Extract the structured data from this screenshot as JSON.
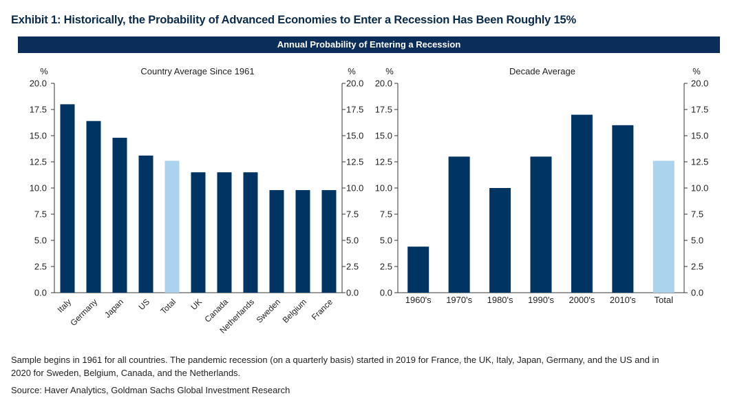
{
  "exhibit_title": "Exhibit 1: Historically, the Probability of Advanced Economies to Enter a Recession Has Been Roughly 15%",
  "banner_title": "Annual Probability of Entering a Recession",
  "colors": {
    "navy": "#003462",
    "light": "#acd3ee",
    "banner": "#0b2d59",
    "axis": "#333333"
  },
  "chart_data": [
    {
      "type": "bar",
      "title": "Country Average Since 1961",
      "ylabel_left": "%",
      "ylabel_right": "%",
      "ylim": [
        0,
        20
      ],
      "yticks": [
        "0.0",
        "2.5",
        "5.0",
        "7.5",
        "10.0",
        "12.5",
        "15.0",
        "17.5",
        "20.0"
      ],
      "categories": [
        "Italy",
        "Germany",
        "Japan",
        "US",
        "Total",
        "UK",
        "Canada",
        "Netherlands",
        "Sweden",
        "Belgium",
        "France"
      ],
      "values": [
        18.0,
        16.4,
        14.8,
        13.1,
        12.6,
        11.5,
        11.5,
        11.5,
        9.8,
        9.8,
        9.8
      ],
      "highlight": [
        "Total"
      ],
      "rotated_labels": true
    },
    {
      "type": "bar",
      "title": "Decade Average",
      "ylabel_left": "%",
      "ylabel_right": "%",
      "ylim": [
        0,
        20
      ],
      "yticks": [
        "0.0",
        "2.5",
        "5.0",
        "7.5",
        "10.0",
        "12.5",
        "15.0",
        "17.5",
        "20.0"
      ],
      "categories": [
        "1960's",
        "1970's",
        "1980's",
        "1990's",
        "2000's",
        "2010's",
        "Total"
      ],
      "values": [
        4.4,
        13.0,
        10.0,
        13.0,
        17.0,
        16.0,
        12.6
      ],
      "highlight": [
        "Total"
      ],
      "rotated_labels": false
    }
  ],
  "note": "Sample begins in 1961 for all countries. The pandemic recession (on a quarterly basis) started in 2019 for France, the UK, Italy, Japan, Germany, and the US and in 2020 for Sweden, Belgium, Canada, and the Netherlands.",
  "source": "Source: Haver Analytics, Goldman Sachs Global Investment Research"
}
